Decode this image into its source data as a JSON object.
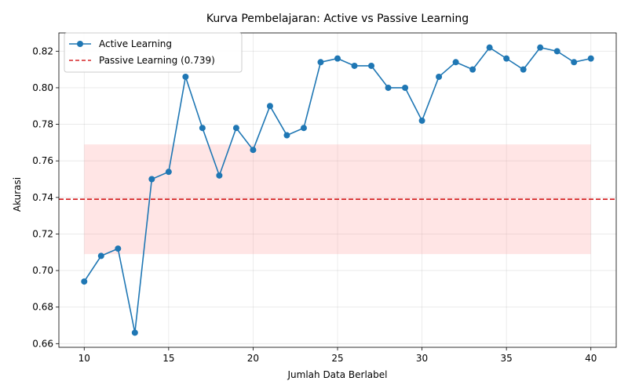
{
  "chart_data": {
    "type": "line",
    "title": "Kurva Pembelajaran: Active vs Passive Learning",
    "xlabel": "Jumlah Data Berlabel",
    "ylabel": "Akurasi",
    "xlim": [
      8.5,
      41.5
    ],
    "ylim": [
      0.658,
      0.83
    ],
    "xticks": [
      10,
      15,
      20,
      25,
      30,
      35,
      40
    ],
    "yticks": [
      0.66,
      0.68,
      0.7,
      0.72,
      0.74,
      0.76,
      0.78,
      0.8,
      0.82
    ],
    "grid": true,
    "legend_position": "top-left",
    "series": [
      {
        "name": "Active Learning",
        "color": "#1f77b4",
        "marker": "circle",
        "x": [
          10,
          11,
          12,
          13,
          14,
          15,
          16,
          17,
          18,
          19,
          20,
          21,
          22,
          23,
          24,
          25,
          26,
          27,
          28,
          29,
          30,
          31,
          32,
          33,
          34,
          35,
          36,
          37,
          38,
          39,
          40
        ],
        "y": [
          0.694,
          0.708,
          0.712,
          0.666,
          0.75,
          0.754,
          0.806,
          0.778,
          0.752,
          0.778,
          0.766,
          0.79,
          0.774,
          0.778,
          0.814,
          0.816,
          0.812,
          0.812,
          0.8,
          0.8,
          0.782,
          0.806,
          0.814,
          0.81,
          0.822,
          0.816,
          0.81,
          0.822,
          0.82,
          0.814,
          0.816
        ]
      }
    ],
    "reference_line": {
      "name": "Passive Learning (0.739)",
      "value": 0.739,
      "color": "#d62728",
      "style": "dashed"
    },
    "band": {
      "x": [
        10,
        40
      ],
      "y": [
        0.709,
        0.769
      ],
      "color": "#ff9999"
    }
  }
}
